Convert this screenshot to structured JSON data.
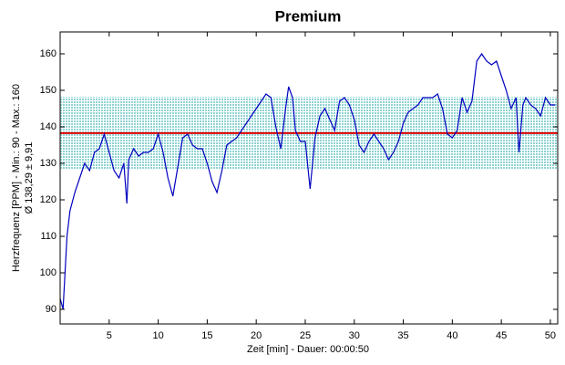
{
  "chart_data": {
    "type": "line",
    "title": "Premium",
    "x_label": "Zeit [min] - Dauer: 00:00:50",
    "y_label": "Herzfrequenz [PPM] - Min.: 90 - Max.: 160",
    "y_label_2": "Ø 138,29 ± 9,91",
    "xlim": [
      0,
      50.75
    ],
    "ylim": [
      86,
      166
    ],
    "xticks": [
      5,
      10,
      15,
      20,
      25,
      30,
      35,
      40,
      45,
      50
    ],
    "yticks": [
      90,
      100,
      110,
      120,
      130,
      140,
      150,
      160
    ],
    "mean_line": 138.29,
    "mean_color": "#e00000",
    "band": [
      128.38,
      148.2
    ],
    "band_color": "#8fd3d3",
    "series": [
      {
        "color": "#0000c0",
        "x": [
          0,
          0.3,
          0.7,
          1,
          1.5,
          2,
          2.5,
          3,
          3.5,
          4,
          4.5,
          5,
          5.5,
          6,
          6.5,
          6.8,
          7,
          7.5,
          8,
          8.5,
          9,
          9.5,
          10,
          10.5,
          11,
          11.5,
          12,
          12.5,
          13,
          13.5,
          14,
          14.5,
          15,
          15.5,
          16,
          16.5,
          17,
          17.5,
          18,
          18.5,
          19,
          19.5,
          20,
          20.5,
          21,
          21.5,
          22,
          22.5,
          23,
          23.3,
          23.7,
          24,
          24.5,
          25,
          25.5,
          26,
          26.5,
          27,
          27.5,
          28,
          28.5,
          29,
          29.5,
          30,
          30.5,
          31,
          31.5,
          32,
          32.5,
          33,
          33.5,
          34,
          34.5,
          35,
          35.5,
          36,
          36.5,
          37,
          37.5,
          38,
          38.5,
          39,
          39.5,
          40,
          40.5,
          41,
          41.5,
          42,
          42.5,
          43,
          43.5,
          44,
          44.5,
          45,
          45.5,
          46,
          46.5,
          46.8,
          47.2,
          47.5,
          48,
          48.5,
          49,
          49.5,
          50,
          50.5
        ],
        "values": [
          93,
          90,
          110,
          117,
          122,
          126,
          130,
          128,
          133,
          134,
          138,
          133,
          128,
          126,
          130,
          119,
          131,
          134,
          132,
          133,
          133,
          134,
          138,
          133,
          126,
          121,
          129,
          137,
          138,
          135,
          134,
          134,
          130,
          125,
          122,
          128,
          135,
          136,
          137,
          139,
          141,
          143,
          145,
          147,
          149,
          148,
          140,
          134,
          145,
          151,
          148,
          139,
          136,
          136,
          123,
          137,
          143,
          145,
          142,
          139,
          147,
          148,
          146,
          142,
          135,
          133,
          136,
          138,
          136,
          134,
          131,
          133,
          136,
          141,
          144,
          145,
          146,
          148,
          148,
          148,
          149,
          145,
          138,
          137,
          139,
          148,
          144,
          147,
          158,
          160,
          158,
          157,
          158,
          154,
          150,
          145,
          148,
          133,
          146,
          148,
          146,
          145,
          143,
          148,
          146,
          146
        ]
      }
    ]
  }
}
